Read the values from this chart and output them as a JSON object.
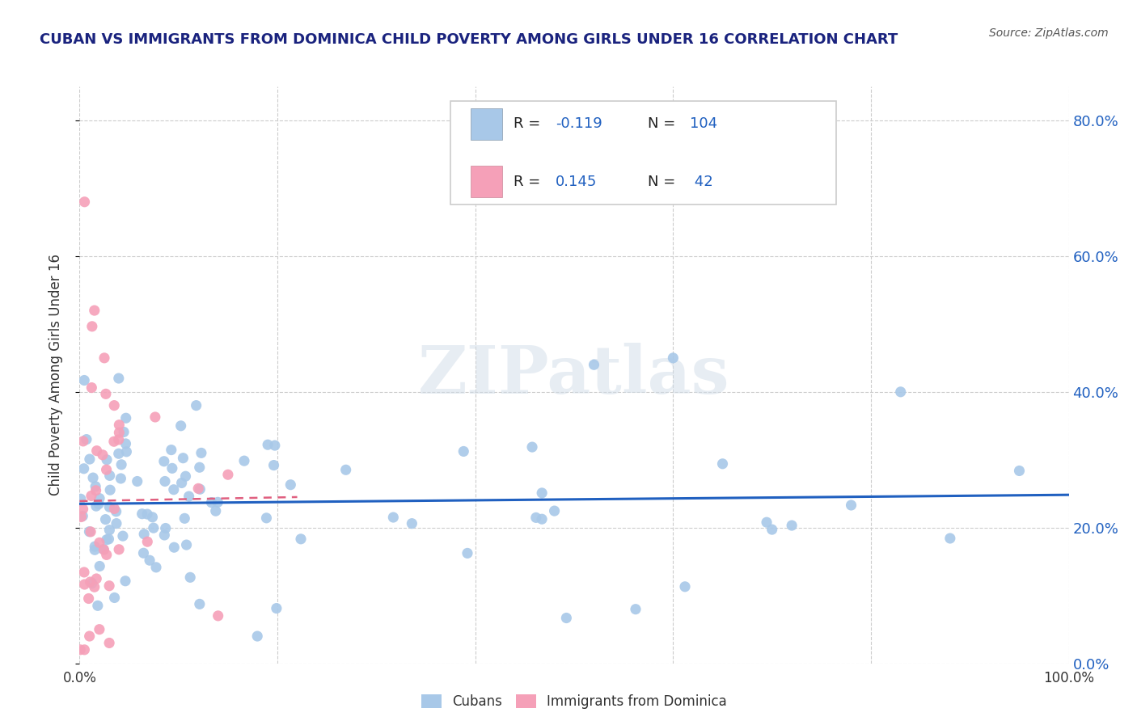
{
  "title": "CUBAN VS IMMIGRANTS FROM DOMINICA CHILD POVERTY AMONG GIRLS UNDER 16 CORRELATION CHART",
  "source": "Source: ZipAtlas.com",
  "ylabel": "Child Poverty Among Girls Under 16",
  "xlim": [
    0,
    1
  ],
  "ylim": [
    0,
    0.85
  ],
  "yticks": [
    0.0,
    0.2,
    0.4,
    0.6,
    0.8
  ],
  "ytick_labels": [
    "0.0%",
    "20.0%",
    "40.0%",
    "60.0%",
    "80.0%"
  ],
  "cuban_color": "#a8c8e8",
  "dominica_color": "#f5a0b8",
  "cuban_line_color": "#2060c0",
  "dominica_line_color": "#e06080",
  "cuban_R": -0.119,
  "cuban_N": 104,
  "dominica_R": 0.145,
  "dominica_N": 42,
  "legend_color": "#2060c0",
  "watermark_text": "ZIPatlas",
  "background_color": "#ffffff",
  "grid_color": "#cccccc",
  "title_color": "#1a237e",
  "ylabel_color": "#333333",
  "source_color": "#555555"
}
